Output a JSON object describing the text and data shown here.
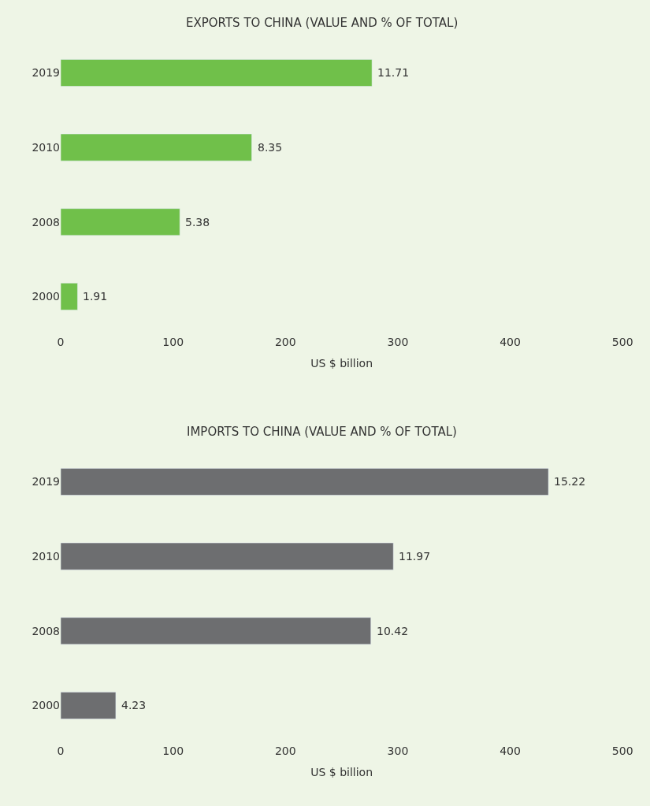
{
  "chart_data": [
    {
      "type": "bar",
      "orientation": "horizontal",
      "title": "EXPORTS TO CHINA (VALUE AND % OF TOTAL)",
      "xlabel": "US $ billion",
      "categories": [
        "2019",
        "2010",
        "2008",
        "2000"
      ],
      "values": [
        277,
        170,
        106,
        15
      ],
      "color": "#70c04a",
      "xlim": [
        0,
        500
      ],
      "xticks": [
        0,
        100,
        200,
        300,
        400,
        500
      ],
      "grid": false,
      "annotations": [
        {
          "text": "11.71",
          "x": 277,
          "y": "2019"
        },
        {
          "text": "8.35",
          "x": 170,
          "y": "2010"
        },
        {
          "text": "5.38",
          "x": 106,
          "y": "2008"
        },
        {
          "text": "1.91",
          "x": 15,
          "y": "2000"
        }
      ]
    },
    {
      "type": "bar",
      "orientation": "horizontal",
      "title": "IMPORTS TO CHINA (VALUE AND % OF TOTAL)",
      "xlabel": "US $ billion",
      "categories": [
        "2019",
        "2010",
        "2008",
        "2000"
      ],
      "values": [
        434,
        296,
        276,
        49
      ],
      "color": "#6d6e70",
      "xlim": [
        0,
        500
      ],
      "xticks": [
        0,
        100,
        200,
        300,
        400,
        500
      ],
      "grid": false,
      "annotations": [
        {
          "text": "15.22",
          "x": 434,
          "y": "2019"
        },
        {
          "text": "11.97",
          "x": 296,
          "y": "2010"
        },
        {
          "text": "10.42",
          "x": 276,
          "y": "2008"
        },
        {
          "text": "4.23",
          "x": 49,
          "y": "2000"
        }
      ]
    }
  ]
}
